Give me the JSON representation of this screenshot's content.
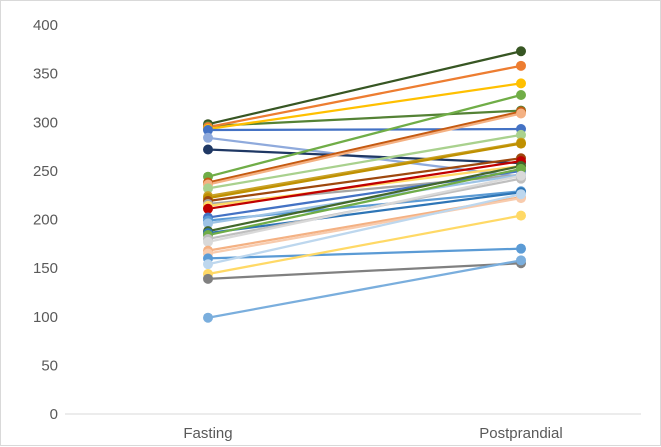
{
  "chart_data": {
    "type": "line",
    "title": "",
    "xlabel": "",
    "ylabel": "",
    "categories": [
      "Fasting",
      "Postprandial"
    ],
    "ylim": [
      0,
      400
    ],
    "yticks": [
      0,
      50,
      100,
      150,
      200,
      250,
      300,
      350,
      400
    ],
    "grid": false,
    "legend": "none",
    "series": [
      {
        "color": "#375623",
        "values": [
          298,
          373
        ]
      },
      {
        "color": "#548235",
        "values": [
          296,
          312
        ]
      },
      {
        "color": "#ed7d31",
        "values": [
          295,
          358
        ]
      },
      {
        "color": "#ffc000",
        "values": [
          293,
          340
        ]
      },
      {
        "color": "#4472c4",
        "values": [
          292,
          293
        ]
      },
      {
        "color": "#8faadc",
        "values": [
          284,
          244
        ]
      },
      {
        "color": "#1f3864",
        "values": [
          272,
          258
        ]
      },
      {
        "color": "#70ad47",
        "values": [
          244,
          328
        ]
      },
      {
        "color": "#c55a11",
        "values": [
          238,
          311
        ]
      },
      {
        "color": "#f4b183",
        "values": [
          236,
          309
        ]
      },
      {
        "color": "#a9d18e",
        "values": [
          232,
          287
        ]
      },
      {
        "color": "#c9a227",
        "values": [
          224,
          279
        ]
      },
      {
        "color": "#bf9000",
        "values": [
          222,
          278
        ]
      },
      {
        "color": "#9e480e",
        "values": [
          219,
          263
        ]
      },
      {
        "color": "#a5a5a5",
        "values": [
          216,
          246
        ]
      },
      {
        "color": "#ffd966",
        "values": [
          214,
          255
        ]
      },
      {
        "color": "#c00000",
        "values": [
          211,
          260
        ]
      },
      {
        "color": "#4472c4",
        "values": [
          202,
          250
        ]
      },
      {
        "color": "#5b9bd5",
        "values": [
          199,
          229
        ]
      },
      {
        "color": "#9dc3e6",
        "values": [
          196,
          246
        ]
      },
      {
        "color": "#43682b",
        "values": [
          188,
          255
        ]
      },
      {
        "color": "#2e75b6",
        "values": [
          186,
          228
        ]
      },
      {
        "color": "#70ad47",
        "values": [
          184,
          252
        ]
      },
      {
        "color": "#bfbfbf",
        "values": [
          180,
          242
        ]
      },
      {
        "color": "#d9d9d9",
        "values": [
          177,
          245
        ]
      },
      {
        "color": "#f4b183",
        "values": [
          168,
          223
        ]
      },
      {
        "color": "#f8cbad",
        "values": [
          165,
          222
        ]
      },
      {
        "color": "#5b9bd5",
        "values": [
          160,
          170
        ]
      },
      {
        "color": "#bdd7ee",
        "values": [
          154,
          226
        ]
      },
      {
        "color": "#ffd966",
        "values": [
          144,
          204
        ]
      },
      {
        "color": "#808080",
        "values": [
          139,
          155
        ]
      },
      {
        "color": "#7aaedd",
        "values": [
          99,
          158
        ]
      }
    ]
  }
}
